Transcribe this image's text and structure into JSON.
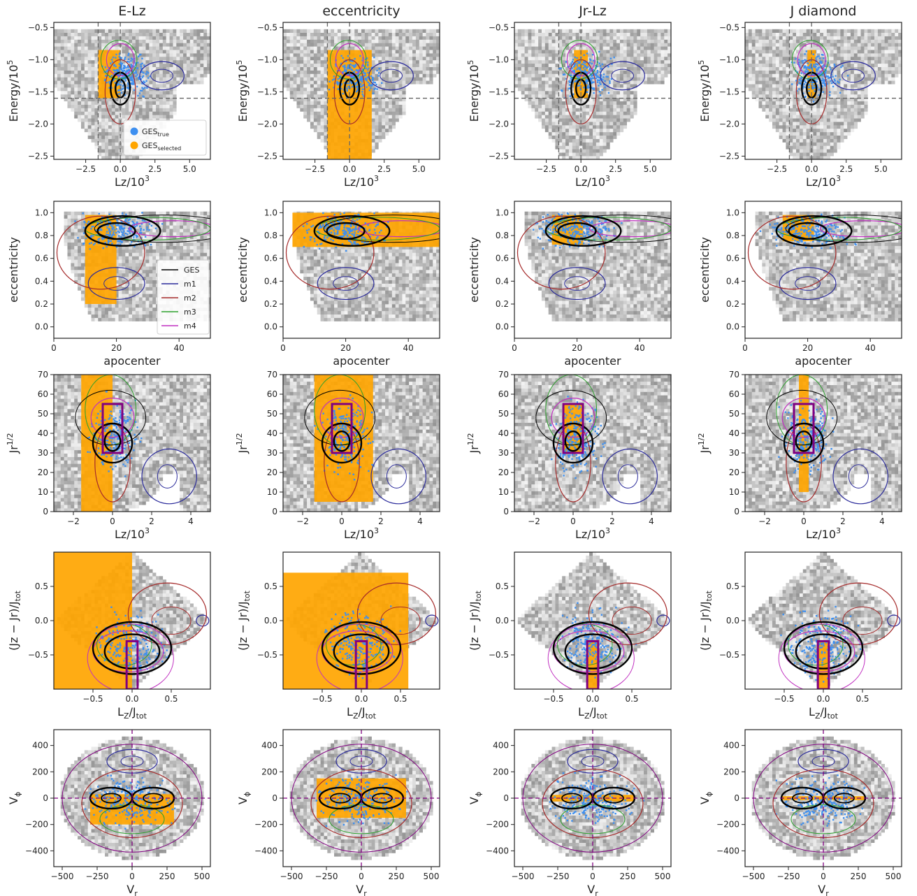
{
  "colors": {
    "ges_true": "#3d8ff0",
    "ges_selected": "#ffa500",
    "density": "#808080",
    "GES": "#000000",
    "m1": "#2b2b9b",
    "m2": "#a52a2a",
    "m3": "#2ca02c",
    "m4": "#c02fc0",
    "selection_box": "#800080"
  },
  "columns": [
    "E-Lz",
    "eccentricity",
    "Jr-Lz",
    "J diamond"
  ],
  "legends": {
    "scatter": [
      {
        "key": "ges_true",
        "base": "GES",
        "sub": "true"
      },
      {
        "key": "ges_selected",
        "base": "GES",
        "sub": "selected"
      }
    ],
    "lines": [
      {
        "key": "GES",
        "label": "GES"
      },
      {
        "key": "m1",
        "label": "m1"
      },
      {
        "key": "m2",
        "label": "m2"
      },
      {
        "key": "m3",
        "label": "m3"
      },
      {
        "key": "m4",
        "label": "m4"
      }
    ]
  },
  "chart_data": [
    {
      "row": "energy-lz",
      "type": "scatter",
      "xlabel": {
        "base": "Lz/10",
        "sup": "3"
      },
      "ylabel": {
        "base": "Energy/10",
        "sup": "5"
      },
      "xlim": [
        -4.8,
        6.5
      ],
      "ylim": [
        -2.55,
        -0.42
      ],
      "xticks": [
        {
          "v": -2.5,
          "t": "−2.5"
        },
        {
          "v": 0,
          "t": "0.0"
        },
        {
          "v": 2.5,
          "t": "2.5"
        },
        {
          "v": 5,
          "t": "5.0"
        }
      ],
      "yticks": [
        {
          "v": -0.5,
          "t": "−0.5"
        },
        {
          "v": -1.0,
          "t": "−1.0"
        },
        {
          "v": -1.5,
          "t": "−1.5"
        },
        {
          "v": -2.0,
          "t": "−2.0"
        },
        {
          "v": -2.5,
          "t": "−2.5"
        }
      ],
      "reference_lines": {
        "horizontal": [
          -1.6
        ],
        "vertical": [
          -1.6,
          0
        ]
      },
      "selection_regions": [
        {
          "xr": [
            -1.6,
            0
          ],
          "yr": [
            -1.6,
            -0.85
          ]
        },
        {
          "xr": [
            -1.6,
            1.6
          ],
          "yr": [
            -2.55,
            -0.85
          ],
          "mode": "ecc"
        },
        {
          "xr": [
            -0.5,
            0.5
          ],
          "yr": [
            -1.6,
            -0.85
          ]
        },
        {
          "xr": [
            -0.3,
            0.3
          ],
          "yr": [
            -1.6,
            -0.85
          ]
        }
      ]
    },
    {
      "row": "eccentricity-apocenter",
      "type": "scatter",
      "xlabel": {
        "base": "apocenter",
        "sup": ""
      },
      "ylabel": {
        "base": "eccentricity",
        "sup": ""
      },
      "xlim": [
        0,
        50
      ],
      "ylim": [
        -0.1,
        1.1
      ],
      "xticks": [
        {
          "v": 0,
          "t": "0"
        },
        {
          "v": 20,
          "t": "20"
        },
        {
          "v": 40,
          "t": "40"
        }
      ],
      "yticks": [
        {
          "v": 0,
          "t": "0.0"
        },
        {
          "v": 0.2,
          "t": "0.2"
        },
        {
          "v": 0.4,
          "t": "0.4"
        },
        {
          "v": 0.6,
          "t": "0.6"
        },
        {
          "v": 0.8,
          "t": "0.8"
        },
        {
          "v": 1.0,
          "t": "1.0"
        }
      ],
      "selection_regions": [
        {
          "xr": [
            10,
            20
          ],
          "yr": [
            0.2,
            0.98
          ]
        },
        {
          "xr": [
            3,
            50
          ],
          "yr": [
            0.7,
            1.0
          ]
        },
        {
          "xr": [
            12,
            22
          ],
          "yr": [
            0.72,
            0.98
          ]
        },
        {
          "xr": [
            12,
            22
          ],
          "yr": [
            0.75,
            0.98
          ]
        }
      ]
    },
    {
      "row": "jr-lz",
      "type": "scatter",
      "xlabel": {
        "base": "Lz/10",
        "sup": "3"
      },
      "ylabel": {
        "base": "Jr",
        "sup": "1/2"
      },
      "xlim": [
        -3,
        5
      ],
      "ylim": [
        0,
        70
      ],
      "xticks": [
        {
          "v": -2,
          "t": "−2"
        },
        {
          "v": 0,
          "t": "0"
        },
        {
          "v": 2,
          "t": "2"
        },
        {
          "v": 4,
          "t": "4"
        }
      ],
      "yticks": [
        {
          "v": 0,
          "t": "0"
        },
        {
          "v": 10,
          "t": "10"
        },
        {
          "v": 20,
          "t": "20"
        },
        {
          "v": 30,
          "t": "30"
        },
        {
          "v": 40,
          "t": "40"
        },
        {
          "v": 50,
          "t": "50"
        },
        {
          "v": 60,
          "t": "60"
        },
        {
          "v": 70,
          "t": "70"
        }
      ],
      "selection_box": {
        "x": [
          -0.5,
          0.5
        ],
        "y": [
          30,
          55
        ]
      },
      "selection_regions": [
        {
          "xr": [
            -1.6,
            0
          ],
          "yr": [
            0,
            70
          ]
        },
        {
          "xr": [
            -1.4,
            1.6
          ],
          "yr": [
            5,
            70
          ],
          "mode": "tri"
        },
        {
          "xr": [
            -0.5,
            0.5
          ],
          "yr": [
            30,
            55
          ]
        },
        {
          "xr": [
            -0.25,
            0.25
          ],
          "yr": [
            10,
            70
          ]
        }
      ]
    },
    {
      "row": "j-diamond",
      "type": "scatter",
      "xlabel": {
        "base": "L",
        "sub1": "Z",
        "mid": "/J",
        "sub2": "tot"
      },
      "ylabel": {
        "base": "(Jz − Jr)/J",
        "sub": "tot"
      },
      "xlim": [
        -1,
        1
      ],
      "ylim": [
        -1,
        1
      ],
      "xticks": [
        {
          "v": -0.5,
          "t": "−0.5"
        },
        {
          "v": 0,
          "t": "0.0"
        },
        {
          "v": 0.5,
          "t": "0.5"
        }
      ],
      "yticks": [
        {
          "v": 0.5,
          "t": "0.5"
        },
        {
          "v": 0,
          "t": "0.0"
        },
        {
          "v": -0.5,
          "t": "−0.5"
        }
      ],
      "selection_box": {
        "x": [
          -0.07,
          0.07
        ],
        "y": [
          -1.0,
          -0.3
        ]
      },
      "selection_regions": [
        {
          "xr": [
            -1,
            0
          ],
          "yr": [
            -1,
            1
          ],
          "mode": "half"
        },
        {
          "xr": [
            -1,
            0.6
          ],
          "yr": [
            -1,
            0.7
          ],
          "mode": "tri"
        },
        {
          "xr": [
            -0.07,
            0.07
          ],
          "yr": [
            -1.0,
            -0.3
          ]
        },
        {
          "xr": [
            -0.07,
            0.07
          ],
          "yr": [
            -1.0,
            -0.3
          ]
        }
      ]
    },
    {
      "row": "vphi-vr",
      "type": "scatter",
      "xlabel": {
        "base": "V",
        "sub": "r"
      },
      "ylabel": {
        "base": "V",
        "sub": "ϕ"
      },
      "xlim": [
        -560,
        560
      ],
      "ylim": [
        -520,
        520
      ],
      "xticks": [
        {
          "v": -500,
          "t": "−500"
        },
        {
          "v": -250,
          "t": "−250"
        },
        {
          "v": 0,
          "t": "0"
        },
        {
          "v": 250,
          "t": "250"
        },
        {
          "v": 500,
          "t": "500"
        }
      ],
      "yticks": [
        {
          "v": 400,
          "t": "400"
        },
        {
          "v": 200,
          "t": "200"
        },
        {
          "v": 0,
          "t": "0"
        },
        {
          "v": -200,
          "t": "−200"
        },
        {
          "v": -400,
          "t": "−400"
        }
      ],
      "reference_lines": {
        "horizontal": [
          0
        ],
        "vertical": [
          0
        ]
      },
      "selection_regions": [
        {
          "xr": [
            -300,
            300
          ],
          "yr": [
            -200,
            30
          ]
        },
        {
          "xr": [
            -320,
            320
          ],
          "yr": [
            -150,
            150
          ]
        },
        {
          "xr": [
            -300,
            300
          ],
          "yr": [
            -25,
            25
          ]
        },
        {
          "xr": [
            -300,
            300
          ],
          "yr": [
            -15,
            15
          ]
        }
      ]
    }
  ]
}
